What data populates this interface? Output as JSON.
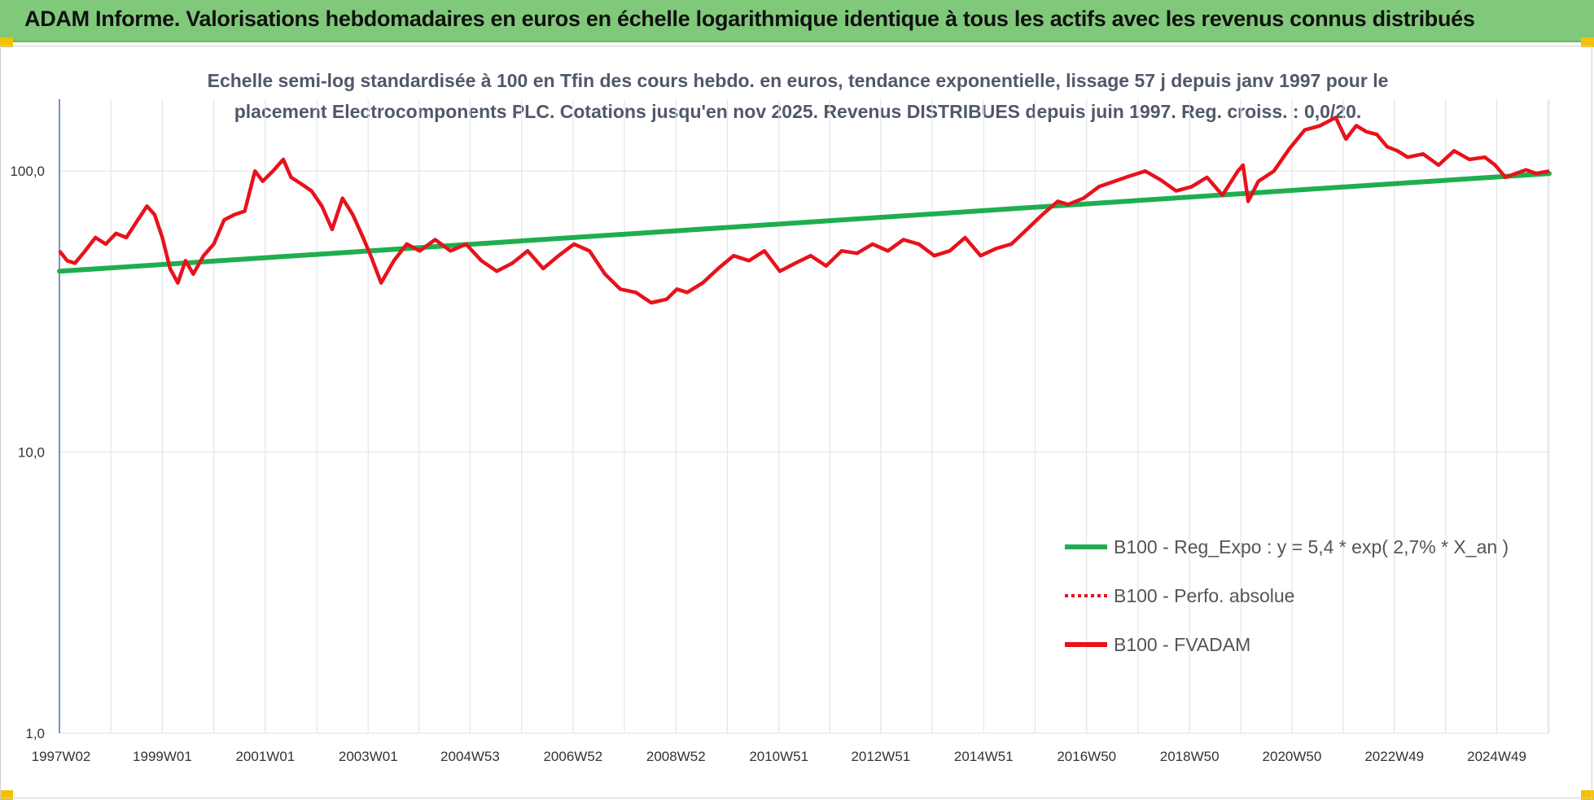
{
  "banner": {
    "title": "ADAM Informe. Valorisations hebdomadaires en euros en échelle logarithmique identique à tous les actifs avec les revenus connus distribués"
  },
  "colors": {
    "banner_bg": "#80c97a",
    "trend_line": "#1fae4f",
    "fvadam_line": "#e8121b",
    "perfo_line": "#e8121b",
    "grid": "#e2e6ea",
    "y_axis": "#4a6fa5",
    "corner_marks": "#f2c200"
  },
  "chart_data": {
    "type": "line",
    "title_line1": "Echelle semi-log standardisée à 100 en Tfin des cours hebdo. en euros, tendance exponentielle, lissage 57 j depuis janv 1997 pour le",
    "title_line2": "placement Electrocomponents PLC. Cotations jusqu'en nov 2025. Revenus DISTRIBUES depuis juin 1997. Reg. croiss. : 0,0/20.",
    "y_scale": "log",
    "ylim": [
      1,
      180
    ],
    "y_ticks": [
      1,
      10,
      100
    ],
    "y_tick_labels": [
      "1,0",
      "10,0",
      "100,0"
    ],
    "xlim": [
      1997.0,
      2025.95
    ],
    "x_ticks": [
      1997.0,
      1999.0,
      2001.0,
      2003.0,
      2004.98,
      2006.98,
      2008.98,
      2010.98,
      2012.96,
      2014.96,
      2016.96,
      2018.96,
      2020.95,
      2022.94,
      2024.93
    ],
    "x_tick_labels": [
      "1997W02",
      "1999W01",
      "2001W01",
      "2003W01",
      "2004W53",
      "2006W52",
      "2008W52",
      "2010W51",
      "2012W51",
      "2014W51",
      "2016W50",
      "2018W50",
      "2020W50",
      "2022W49",
      "2024W49"
    ],
    "grid": true,
    "legend_position": "bottom-right",
    "series": [
      {
        "name": "B100 - Reg_Expo : y = 5,4 * exp( 2,7% *  X_an )",
        "style": "solid-thick",
        "color": "#1fae4f",
        "x": [
          1997.0,
          2025.95
        ],
        "values": [
          44,
          98
        ]
      },
      {
        "name": "B100 - Perfo. absolue",
        "style": "dotted",
        "color": "#e8121b",
        "x": [],
        "values": []
      },
      {
        "name": "B100 - FVADAM",
        "style": "solid-thick",
        "color": "#e8121b",
        "x": [
          1997.0,
          1997.15,
          1997.3,
          1997.5,
          1997.7,
          1997.9,
          1998.1,
          1998.3,
          1998.5,
          1998.7,
          1998.85,
          1999.0,
          1999.15,
          1999.3,
          1999.45,
          1999.6,
          1999.8,
          2000.0,
          2000.2,
          2000.4,
          2000.6,
          2000.8,
          2000.95,
          2001.15,
          2001.35,
          2001.5,
          2001.7,
          2001.9,
          2002.1,
          2002.3,
          2002.5,
          2002.7,
          2002.9,
          2003.05,
          2003.25,
          2003.5,
          2003.75,
          2004.0,
          2004.3,
          2004.6,
          2004.9,
          2005.2,
          2005.5,
          2005.8,
          2006.1,
          2006.4,
          2006.7,
          2007.0,
          2007.3,
          2007.6,
          2007.9,
          2008.2,
          2008.5,
          2008.8,
          2009.0,
          2009.2,
          2009.5,
          2009.8,
          2010.1,
          2010.4,
          2010.7,
          2011.0,
          2011.3,
          2011.6,
          2011.9,
          2012.2,
          2012.5,
          2012.8,
          2013.1,
          2013.4,
          2013.7,
          2014.0,
          2014.3,
          2014.6,
          2014.9,
          2015.2,
          2015.5,
          2015.8,
          2016.1,
          2016.4,
          2016.6,
          2016.9,
          2017.2,
          2017.5,
          2017.8,
          2018.1,
          2018.4,
          2018.7,
          2019.0,
          2019.3,
          2019.6,
          2019.9,
          2020.0,
          2020.1,
          2020.3,
          2020.6,
          2020.9,
          2021.2,
          2021.5,
          2021.8,
          2022.0,
          2022.2,
          2022.4,
          2022.6,
          2022.8,
          2023.0,
          2023.2,
          2023.5,
          2023.8,
          2024.1,
          2024.4,
          2024.7,
          2024.9,
          2025.1,
          2025.3,
          2025.5,
          2025.7,
          2025.95
        ],
        "values": [
          52,
          48,
          47,
          52,
          58,
          55,
          60,
          58,
          66,
          75,
          70,
          58,
          45,
          40,
          48,
          43,
          50,
          55,
          67,
          70,
          72,
          100,
          92,
          100,
          110,
          95,
          90,
          85,
          75,
          62,
          80,
          70,
          58,
          50,
          40,
          48,
          55,
          52,
          57,
          52,
          55,
          48,
          44,
          47,
          52,
          45,
          50,
          55,
          52,
          43,
          38,
          37,
          34,
          35,
          38,
          37,
          40,
          45,
          50,
          48,
          52,
          44,
          47,
          50,
          46,
          52,
          51,
          55,
          52,
          57,
          55,
          50,
          52,
          58,
          50,
          53,
          55,
          62,
          70,
          78,
          76,
          80,
          88,
          92,
          96,
          100,
          93,
          85,
          88,
          95,
          82,
          100,
          105,
          78,
          92,
          100,
          120,
          140,
          145,
          155,
          130,
          145,
          138,
          135,
          122,
          118,
          112,
          115,
          105,
          118,
          110,
          112,
          105,
          95,
          98,
          101,
          98,
          100
        ]
      }
    ]
  }
}
